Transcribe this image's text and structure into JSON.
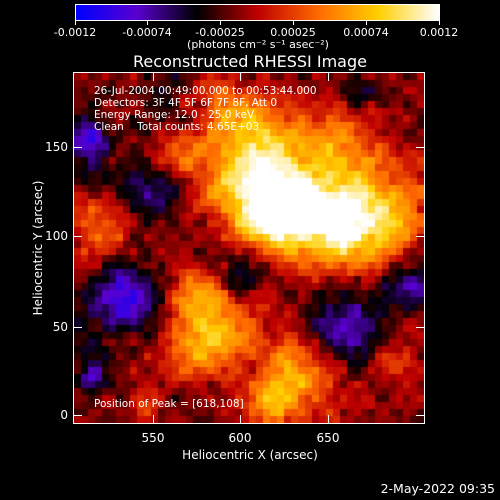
{
  "colorbar": {
    "tick_labels": [
      "-0.0012",
      "-0.00074",
      "-0.00025",
      "0.00025",
      "0.00074",
      "0.0012"
    ],
    "units": "(photons cm⁻² s⁻¹ asec⁻²)",
    "colors": [
      "#0000ff",
      "#5a00d0",
      "#000000",
      "#c00000",
      "#ff6a00",
      "#ffd000",
      "#ffffff"
    ]
  },
  "title": "Reconstructed RHESSI Image",
  "info": {
    "time_range": "26-Jul-2004 00:49:00.000 to 00:53:44.000",
    "detectors": "Detectors: 3F 4F 5F 6F 7F 8F, Att 0",
    "energy_range": "Energy Range: 12.0 - 25.0 keV",
    "method_counts": "Clean    Total counts: 4.65E+03",
    "peak_position": "Position of Peak = [618,108]"
  },
  "chart_data": {
    "type": "heatmap",
    "title": "Reconstructed RHESSI Image",
    "xlabel": "Heliocentric X (arcsec)",
    "ylabel": "Heliocentric Y (arcsec)",
    "xlim": [
      509,
      696
    ],
    "ylim": [
      -5,
      182
    ],
    "x_ticks": [
      550,
      600,
      650
    ],
    "y_ticks": [
      0,
      50,
      100,
      150
    ],
    "x_tick_labels": [
      "550",
      "600",
      "650"
    ],
    "y_tick_labels": [
      "0",
      "50",
      "100",
      "150"
    ],
    "value_range": [
      -0.0012,
      0.0012
    ],
    "peak": [
      618,
      108
    ],
    "bright_regions": [
      {
        "x": 618,
        "y": 108,
        "r": 16,
        "value": 0.0012
      },
      {
        "x": 600,
        "y": 128,
        "r": 18,
        "value": 0.0009
      },
      {
        "x": 640,
        "y": 112,
        "r": 18,
        "value": 0.0009
      },
      {
        "x": 655,
        "y": 95,
        "r": 14,
        "value": 0.0007
      },
      {
        "x": 675,
        "y": 108,
        "r": 18,
        "value": 0.0008
      },
      {
        "x": 610,
        "y": 150,
        "r": 12,
        "value": 0.0006
      },
      {
        "x": 650,
        "y": 150,
        "r": 14,
        "value": 0.0006
      },
      {
        "x": 590,
        "y": 165,
        "r": 10,
        "value": 0.0005
      },
      {
        "x": 565,
        "y": 140,
        "r": 10,
        "value": 0.0004
      },
      {
        "x": 520,
        "y": 97,
        "r": 10,
        "value": 0.0007
      },
      {
        "x": 575,
        "y": 62,
        "r": 10,
        "value": 0.0007
      },
      {
        "x": 590,
        "y": 45,
        "r": 14,
        "value": 0.0008
      },
      {
        "x": 570,
        "y": 30,
        "r": 10,
        "value": 0.0006
      },
      {
        "x": 630,
        "y": 20,
        "r": 16,
        "value": 0.0008
      },
      {
        "x": 615,
        "y": 5,
        "r": 8,
        "value": 0.0006
      },
      {
        "x": 680,
        "y": 30,
        "r": 10,
        "value": 0.0004
      },
      {
        "x": 548,
        "y": 8,
        "r": 6,
        "value": 0.0004
      }
    ],
    "negative_regions": [
      {
        "x": 535,
        "y": 62,
        "r": 12,
        "value": -0.0008
      },
      {
        "x": 515,
        "y": 145,
        "r": 10,
        "value": -0.0006
      },
      {
        "x": 550,
        "y": 120,
        "r": 10,
        "value": -0.0005
      },
      {
        "x": 655,
        "y": 45,
        "r": 14,
        "value": -0.0007
      },
      {
        "x": 690,
        "y": 70,
        "r": 10,
        "value": -0.0006
      },
      {
        "x": 520,
        "y": 20,
        "r": 8,
        "value": -0.0005
      },
      {
        "x": 660,
        "y": 170,
        "r": 8,
        "value": -0.0004
      },
      {
        "x": 600,
        "y": 75,
        "r": 8,
        "value": -0.0004
      }
    ]
  },
  "footer": {
    "timestamp": "2-May-2022 09:35"
  }
}
